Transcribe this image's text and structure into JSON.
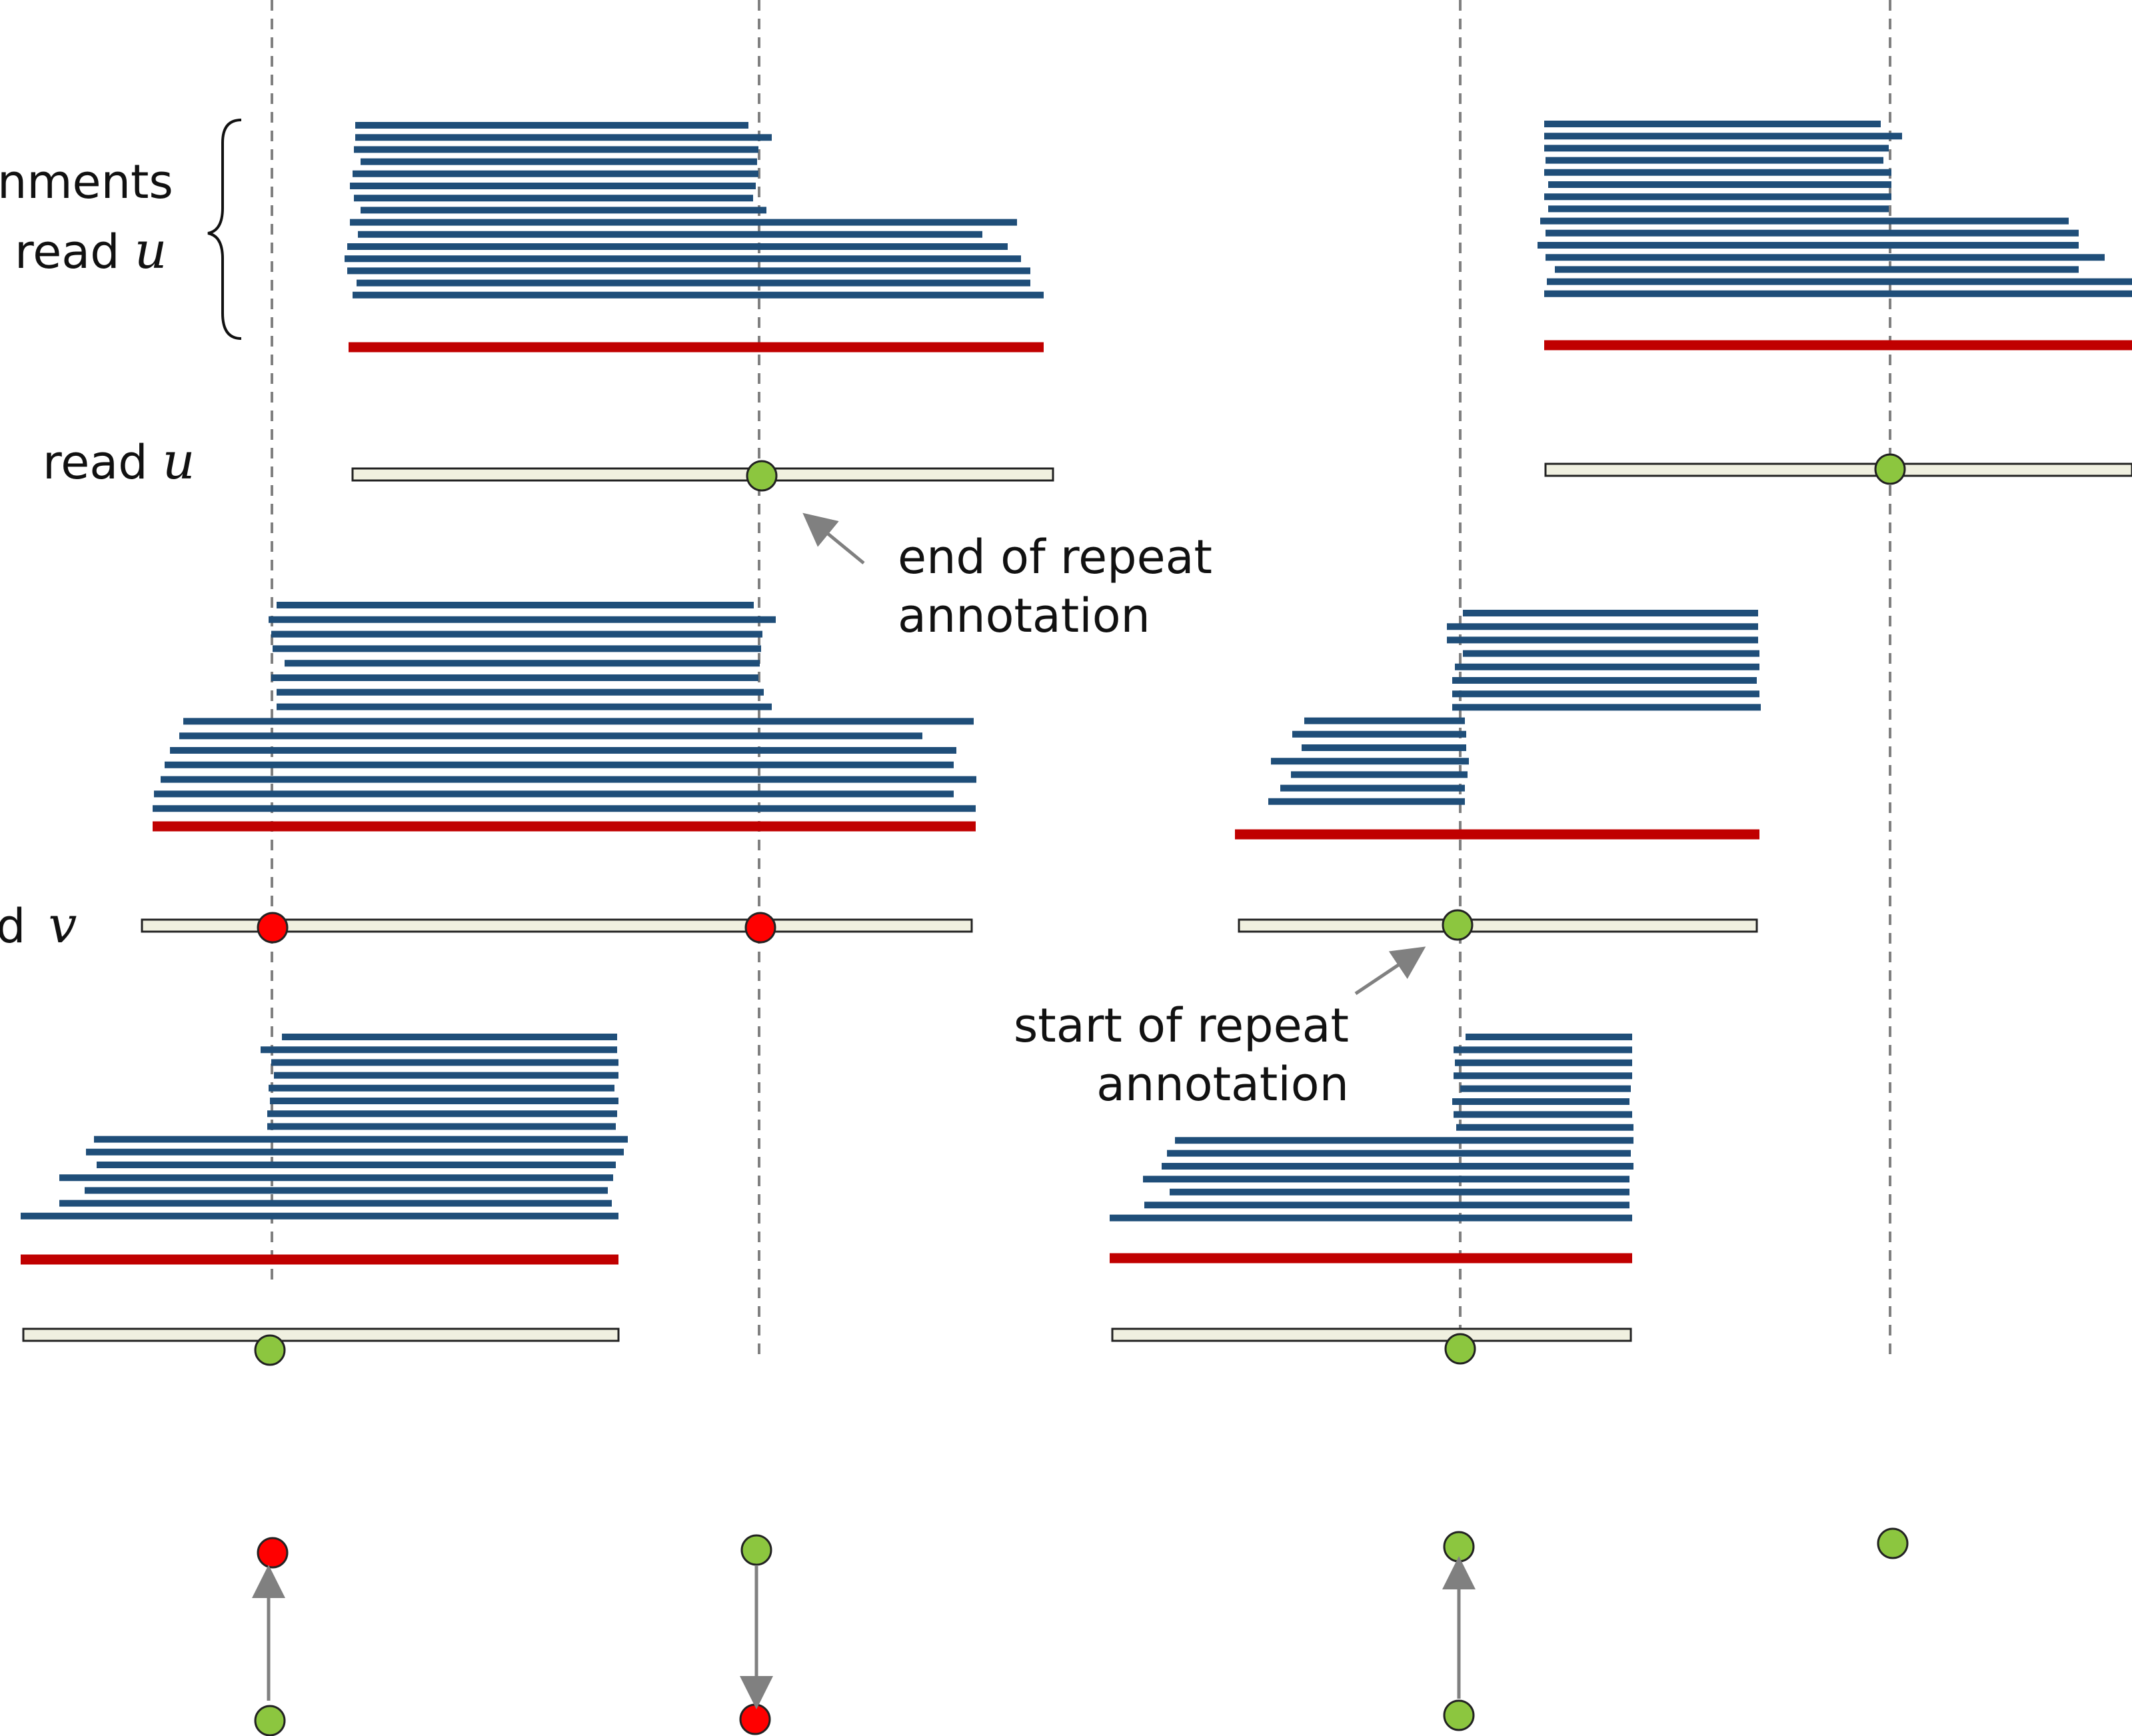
{
  "labels": {
    "alignments_prefix": "nments",
    "read_u_top": "read",
    "read_u_top_var": "u",
    "read_u": "read",
    "read_u_var": "u",
    "read_v_prefix": "d",
    "read_v_var": "v",
    "end_repeat_line1": "end of repeat",
    "end_repeat_line2": "annotation",
    "start_repeat_line1": "start of repeat",
    "start_repeat_line2": "annotation"
  },
  "colors": {
    "alignment": "#1f4e79",
    "read_self": "#c00000",
    "read_fill": "#f0f0e0",
    "good_node": "#8cc63f",
    "bad_node": "#ff0000",
    "guide_line": "#808080",
    "arrow": "#808080"
  },
  "icons": [
    "brace-icon",
    "arrow-icon"
  ]
}
